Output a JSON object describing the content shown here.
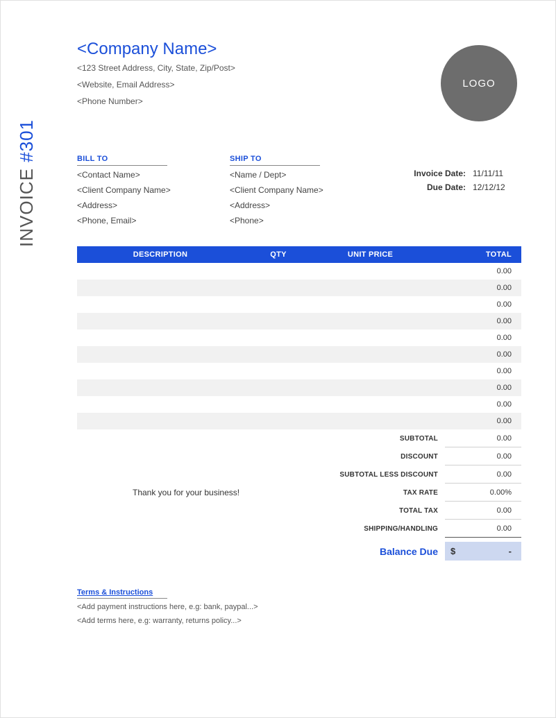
{
  "sidebar": {
    "prefix": "INVOICE ",
    "hash": "#",
    "number": "301"
  },
  "company": {
    "name": "<Company Name>",
    "address": "<123 Street Address, City, State, Zip/Post>",
    "web": "<Website, Email Address>",
    "phone": "<Phone Number>"
  },
  "logo": {
    "text": "LOGO",
    "bg": "#6d6d6d",
    "fg": "#ffffff"
  },
  "bill_to": {
    "heading": "BILL TO",
    "lines": [
      "<Contact Name>",
      "<Client Company Name>",
      "<Address>",
      "<Phone, Email>"
    ]
  },
  "ship_to": {
    "heading": "SHIP TO",
    "lines": [
      "<Name / Dept>",
      "<Client Company Name>",
      "<Address>",
      "<Phone>"
    ]
  },
  "meta": {
    "invoice_date_label": "Invoice Date:",
    "invoice_date": "11/11/11",
    "due_date_label": "Due Date:",
    "due_date": "12/12/12"
  },
  "table": {
    "headers": {
      "description": "DESCRIPTION",
      "qty": "QTY",
      "unit_price": "UNIT PRICE",
      "total": "TOTAL"
    },
    "header_bg": "#1b4fd9",
    "header_fg": "#ffffff",
    "row_alt_bg": "#f1f1f1",
    "rows": [
      {
        "description": "",
        "qty": "",
        "unit_price": "",
        "total": "0.00"
      },
      {
        "description": "",
        "qty": "",
        "unit_price": "",
        "total": "0.00"
      },
      {
        "description": "",
        "qty": "",
        "unit_price": "",
        "total": "0.00"
      },
      {
        "description": "",
        "qty": "",
        "unit_price": "",
        "total": "0.00"
      },
      {
        "description": "",
        "qty": "",
        "unit_price": "",
        "total": "0.00"
      },
      {
        "description": "",
        "qty": "",
        "unit_price": "",
        "total": "0.00"
      },
      {
        "description": "",
        "qty": "",
        "unit_price": "",
        "total": "0.00"
      },
      {
        "description": "",
        "qty": "",
        "unit_price": "",
        "total": "0.00"
      },
      {
        "description": "",
        "qty": "",
        "unit_price": "",
        "total": "0.00"
      },
      {
        "description": "",
        "qty": "",
        "unit_price": "",
        "total": "0.00"
      }
    ]
  },
  "thanks": "Thank you for your business!",
  "totals": {
    "subtotal_label": "SUBTOTAL",
    "subtotal": "0.00",
    "discount_label": "DISCOUNT",
    "discount": "0.00",
    "less_label": "SUBTOTAL LESS DISCOUNT",
    "less": "0.00",
    "taxrate_label": "TAX RATE",
    "taxrate": "0.00%",
    "totaltax_label": "TOTAL TAX",
    "totaltax": "0.00",
    "shipping_label": "SHIPPING/HANDLING",
    "shipping": "0.00"
  },
  "balance": {
    "label": "Balance Due",
    "currency": "$",
    "amount": "-",
    "bg": "#cdd8f0"
  },
  "terms": {
    "heading": "Terms & Instructions",
    "line1": "<Add payment instructions here, e.g: bank, paypal...>",
    "line2": "<Add terms here, e.g: warranty, returns policy...>"
  },
  "colors": {
    "accent": "#1b4fd9",
    "text": "#333333",
    "muted": "#555555",
    "border": "#888888"
  }
}
